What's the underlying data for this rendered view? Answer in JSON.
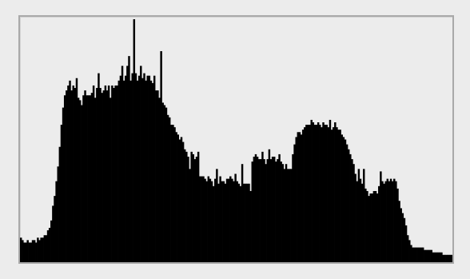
{
  "colors": {
    "background": "#ececec",
    "frame_border": "#a9a9a9",
    "bars": "#000000"
  },
  "chart_data": {
    "type": "bar",
    "title": "",
    "xlabel": "",
    "ylabel": "",
    "xlim": [
      0,
      255
    ],
    "ylim": [
      0,
      100
    ],
    "grid": false,
    "legend": "none",
    "bins": 256,
    "values": [
      10,
      9,
      8,
      8,
      9,
      8,
      8,
      9,
      9,
      8,
      10,
      9,
      10,
      10,
      11,
      11,
      13,
      14,
      17,
      23,
      27,
      33,
      39,
      47,
      56,
      63,
      68,
      70,
      72,
      74,
      70,
      72,
      71,
      75,
      67,
      66,
      64,
      68,
      70,
      68,
      68,
      68,
      69,
      72,
      67,
      71,
      77,
      71,
      69,
      70,
      72,
      70,
      72,
      67,
      72,
      71,
      72,
      72,
      74,
      76,
      80,
      74,
      76,
      80,
      84,
      74,
      77,
      99,
      77,
      74,
      76,
      80,
      75,
      77,
      74,
      76,
      76,
      74,
      73,
      76,
      70,
      70,
      67,
      86,
      65,
      64,
      63,
      60,
      59,
      56,
      56,
      55,
      53,
      52,
      50,
      51,
      49,
      46,
      45,
      43,
      38,
      45,
      44,
      42,
      43,
      45,
      35,
      35,
      35,
      34,
      33,
      35,
      34,
      33,
      31,
      34,
      38,
      32,
      35,
      33,
      33,
      32,
      34,
      34,
      35,
      34,
      33,
      36,
      33,
      32,
      31,
      40,
      32,
      32,
      32,
      32,
      29,
      41,
      43,
      44,
      43,
      42,
      42,
      45,
      42,
      40,
      42,
      46,
      42,
      43,
      43,
      41,
      42,
      44,
      41,
      40,
      38,
      40,
      38,
      38,
      38,
      44,
      48,
      51,
      53,
      53,
      52,
      54,
      55,
      56,
      56,
      56,
      58,
      57,
      56,
      56,
      57,
      56,
      55,
      57,
      56,
      56,
      55,
      58,
      54,
      55,
      57,
      55,
      54,
      54,
      52,
      51,
      50,
      48,
      46,
      44,
      42,
      40,
      36,
      33,
      38,
      34,
      32,
      38,
      30,
      29,
      27,
      28,
      28,
      29,
      29,
      28,
      31,
      37,
      33,
      32,
      33,
      34,
      33,
      34,
      33,
      34,
      33,
      30,
      25,
      22,
      20,
      18,
      15,
      11,
      9,
      7,
      6,
      6,
      6,
      6,
      6,
      6,
      6,
      5,
      5,
      5,
      5,
      5,
      4,
      4,
      4,
      4,
      4,
      4,
      3,
      3,
      3,
      3,
      3,
      3
    ]
  }
}
